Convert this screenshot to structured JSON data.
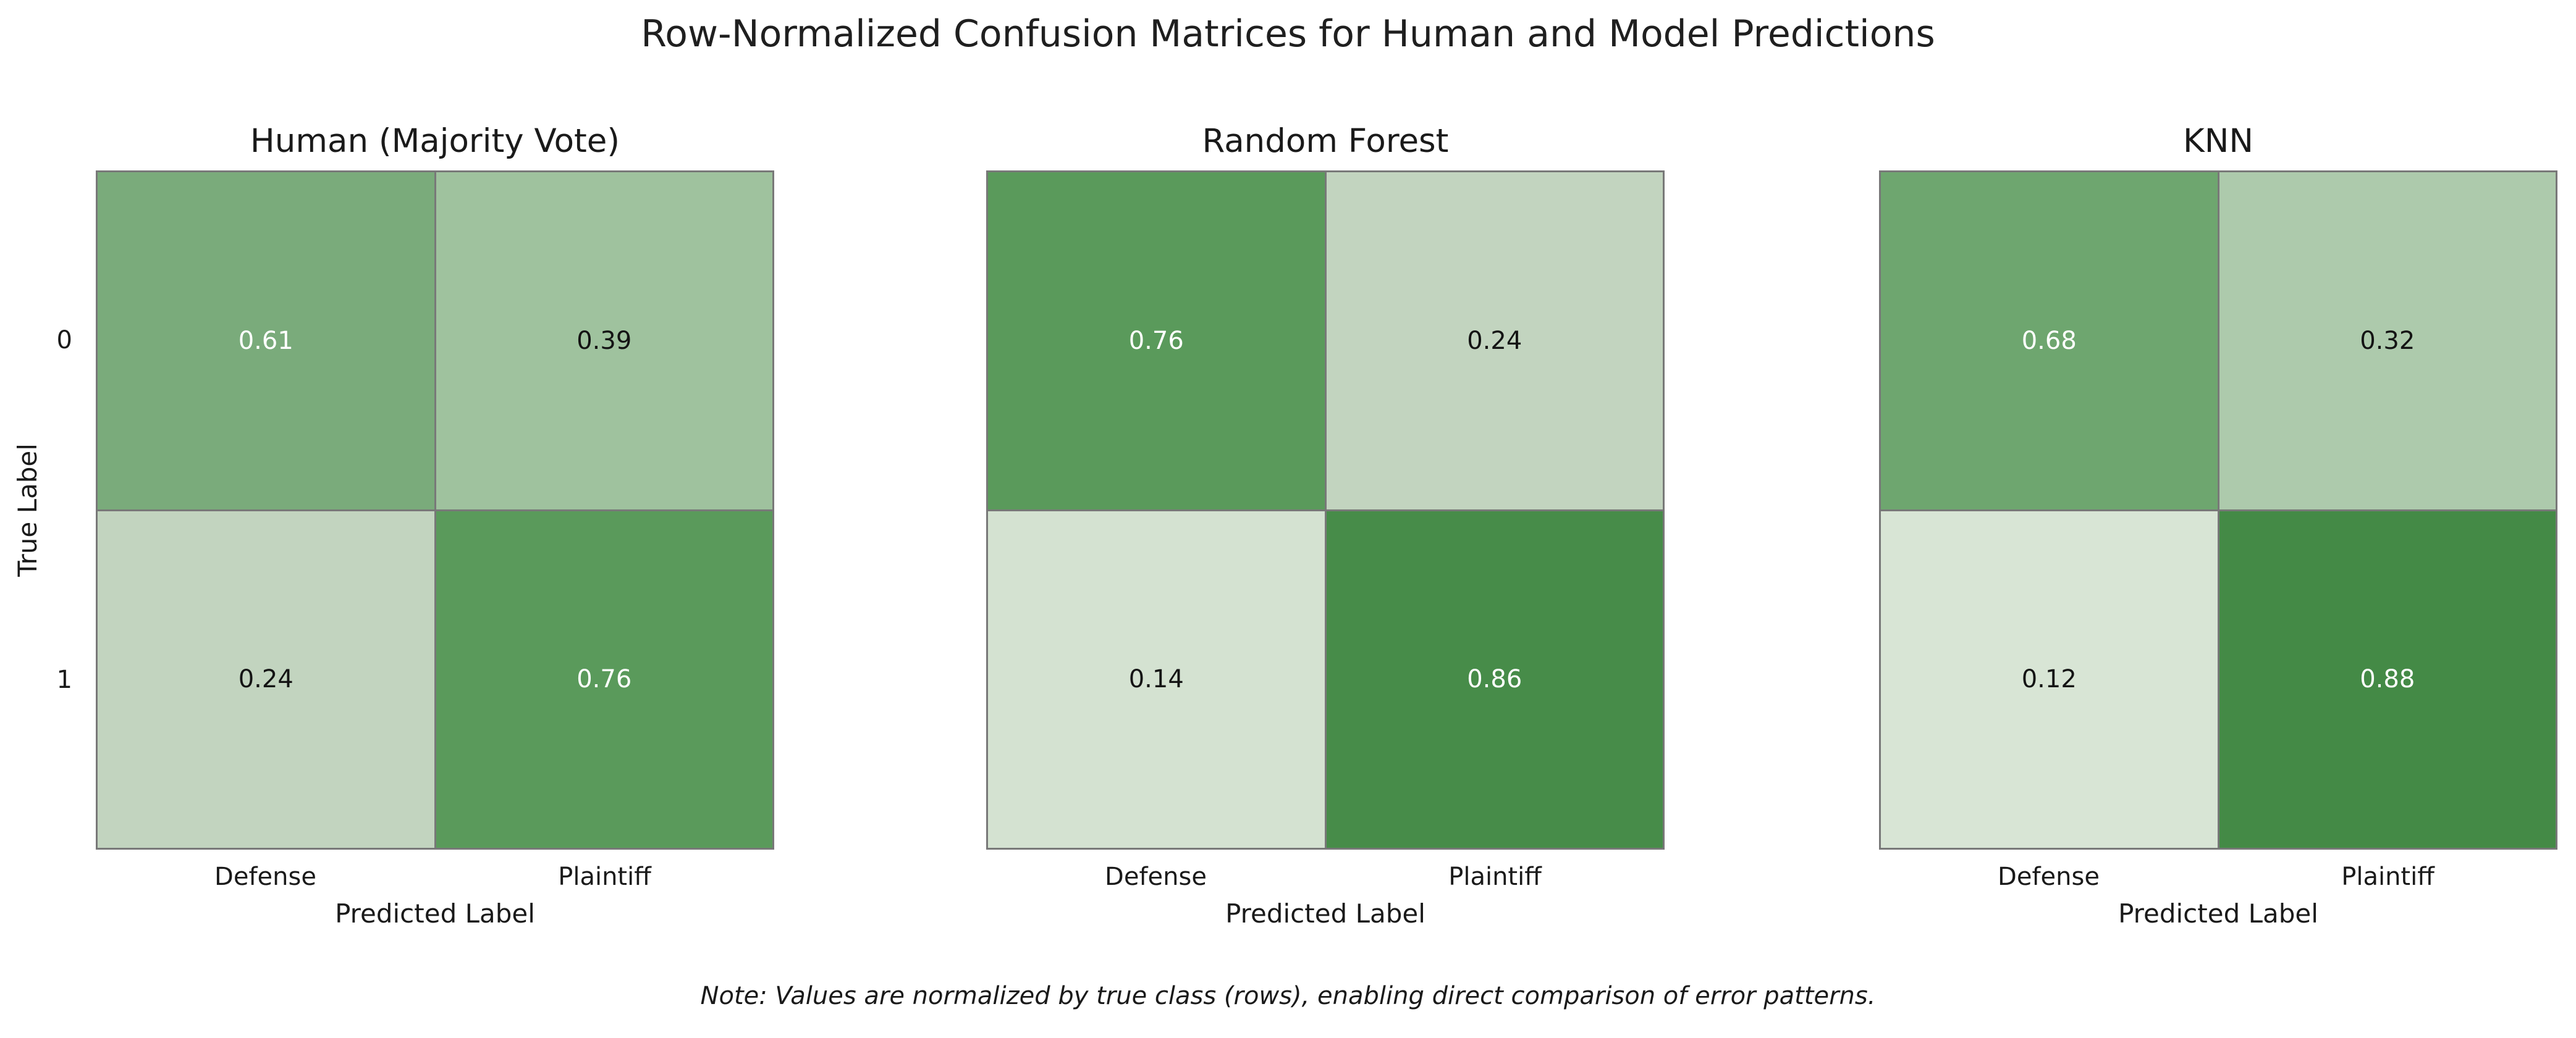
{
  "figure": {
    "suptitle": "Row-Normalized Confusion Matrices for Human and Model Predictions",
    "footnote": "Note: Values are normalized by true class (rows), enabling direct comparison of error patterns.",
    "background_color": "#ffffff",
    "grid_line_color": "#787878",
    "text_color": "#1a1a1a"
  },
  "chart_data": [
    {
      "type": "heatmap",
      "title": "Human (Majority Vote)",
      "xlabel": "Predicted Label",
      "ylabel": "True Label",
      "x_ticklabels": [
        "Defense",
        "Plaintiff"
      ],
      "y_ticklabels": [
        "0",
        "1"
      ],
      "categories_x": [
        "Defense",
        "Plaintiff"
      ],
      "categories_y": [
        "0",
        "1"
      ],
      "values": [
        [
          0.61,
          0.39
        ],
        [
          0.24,
          0.76
        ]
      ],
      "vmin": 0,
      "vmax": 1,
      "colormap": "Greens",
      "rows": [
        {
          "cells": [
            {
              "value": "0.61",
              "bg": "#7aab7b",
              "fg": "#ffffff"
            },
            {
              "value": "0.39",
              "bg": "#9fc29e",
              "fg": "#141414"
            }
          ]
        },
        {
          "cells": [
            {
              "value": "0.24",
              "bg": "#c2d4bf",
              "fg": "#141414"
            },
            {
              "value": "0.76",
              "bg": "#5a9a5b",
              "fg": "#ffffff"
            }
          ]
        }
      ]
    },
    {
      "type": "heatmap",
      "title": "Random Forest",
      "xlabel": "Predicted Label",
      "ylabel": "",
      "x_ticklabels": [
        "Defense",
        "Plaintiff"
      ],
      "y_ticklabels": [
        "0",
        "1"
      ],
      "categories_x": [
        "Defense",
        "Plaintiff"
      ],
      "categories_y": [
        "0",
        "1"
      ],
      "values": [
        [
          0.76,
          0.24
        ],
        [
          0.14,
          0.86
        ]
      ],
      "vmin": 0,
      "vmax": 1,
      "colormap": "Greens",
      "rows": [
        {
          "cells": [
            {
              "value": "0.76",
              "bg": "#5a9a5b",
              "fg": "#ffffff"
            },
            {
              "value": "0.24",
              "bg": "#c2d4bf",
              "fg": "#141414"
            }
          ]
        },
        {
          "cells": [
            {
              "value": "0.14",
              "bg": "#d4e2d1",
              "fg": "#141414"
            },
            {
              "value": "0.86",
              "bg": "#478c49",
              "fg": "#ffffff"
            }
          ]
        }
      ]
    },
    {
      "type": "heatmap",
      "title": "KNN",
      "xlabel": "Predicted Label",
      "ylabel": "",
      "x_ticklabels": [
        "Defense",
        "Plaintiff"
      ],
      "y_ticklabels": [
        "0",
        "1"
      ],
      "categories_x": [
        "Defense",
        "Plaintiff"
      ],
      "categories_y": [
        "0",
        "1"
      ],
      "values": [
        [
          0.68,
          0.32
        ],
        [
          0.12,
          0.88
        ]
      ],
      "vmin": 0,
      "vmax": 1,
      "colormap": "Greens",
      "rows": [
        {
          "cells": [
            {
              "value": "0.68",
              "bg": "#6ea66f",
              "fg": "#ffffff"
            },
            {
              "value": "0.32",
              "bg": "#adcaac",
              "fg": "#141414"
            }
          ]
        },
        {
          "cells": [
            {
              "value": "0.12",
              "bg": "#d8e5d5",
              "fg": "#141414"
            },
            {
              "value": "0.88",
              "bg": "#448a46",
              "fg": "#ffffff"
            }
          ]
        }
      ]
    }
  ]
}
